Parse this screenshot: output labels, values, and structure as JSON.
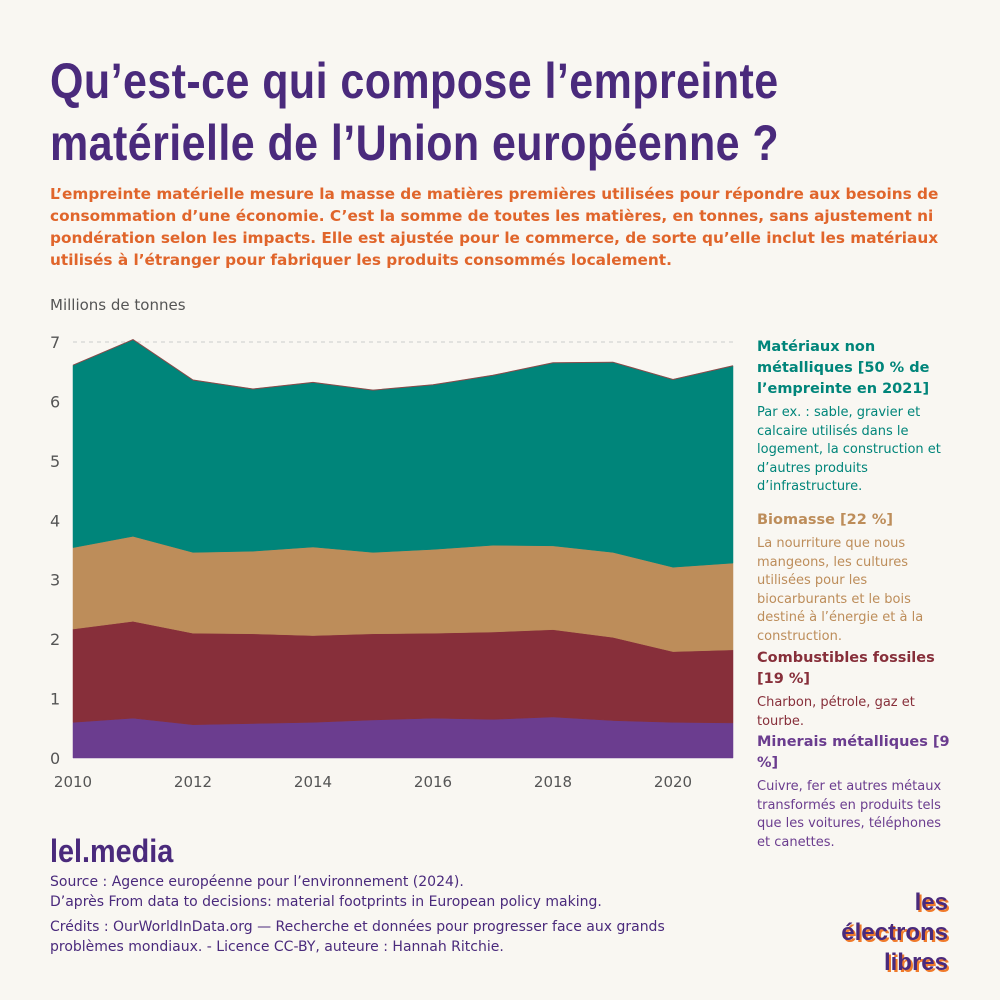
{
  "title": "Qu’est-ce qui compose l’empreinte matérielle de l’Union européenne ?",
  "intro": "L’empreinte matérielle mesure la masse de matières premières utilisées pour répondre aux besoins de consommation d’une économie. C’est la somme de toutes les matières, en tonnes, sans ajustement ni pondération selon les impacts. Elle est ajustée pour le commerce, de sorte qu’elle inclut les matériaux utilisés à l’étranger pour fabriquer les produits consommés localement.",
  "chart_data": {
    "type": "area",
    "stacked": true,
    "ylabel": "Millions de tonnes",
    "ylim": [
      0,
      7
    ],
    "yticks": [
      "0",
      "1",
      "2",
      "3",
      "4",
      "5",
      "6",
      "7"
    ],
    "xticks": [
      "2010",
      "2012",
      "2014",
      "2016",
      "2018",
      "2020"
    ],
    "x": [
      2010,
      2011,
      2012,
      2013,
      2014,
      2015,
      2016,
      2017,
      2018,
      2019,
      2020,
      2021
    ],
    "series": [
      {
        "name": "Minerais métalliques",
        "color": "#6b3d8f",
        "values": [
          0.6,
          0.67,
          0.56,
          0.58,
          0.6,
          0.64,
          0.67,
          0.65,
          0.69,
          0.63,
          0.6,
          0.59
        ]
      },
      {
        "name": "Combustibles fossiles",
        "color": "#872f3a",
        "values": [
          1.57,
          1.63,
          1.54,
          1.51,
          1.46,
          1.45,
          1.43,
          1.47,
          1.47,
          1.4,
          1.19,
          1.23
        ]
      },
      {
        "name": "Biomasse",
        "color": "#bd8d5a",
        "values": [
          1.37,
          1.43,
          1.36,
          1.39,
          1.49,
          1.37,
          1.41,
          1.46,
          1.41,
          1.43,
          1.42,
          1.46
        ]
      },
      {
        "name": "Matériaux non métalliques",
        "color": "#00857a",
        "values": [
          3.07,
          3.31,
          2.9,
          2.73,
          2.77,
          2.73,
          2.77,
          2.86,
          3.08,
          3.2,
          3.16,
          3.32
        ]
      }
    ]
  },
  "legend": [
    {
      "title": "Matériaux non métalliques [50 % de l’empreinte en 2021]",
      "desc": "Par ex. : sable, gravier et calcaire utilisés dans le logement, la construction et d’autres produits d’infrastructure.",
      "color": "#00857a"
    },
    {
      "title": "Biomasse [22 %]",
      "desc": "La nourriture que nous mangeons, les cultures utilisées pour les biocarburants et le bois destiné à l’énergie et à la construction.",
      "color": "#bd8d5a"
    },
    {
      "title": "Combustibles fossiles [19 %]",
      "desc": "Charbon, pétrole, gaz et tourbe.",
      "color": "#872f3a"
    },
    {
      "title": "Minerais métalliques [9 %]",
      "desc": "Cuivre, fer et autres métaux transformés en produits tels que les voitures, téléphones et canettes.",
      "color": "#6b3d8f"
    }
  ],
  "brand": "lel.media",
  "source": [
    "Source : Agence européenne pour l’environnement (2024).",
    "D’après From data to decisions: material footprints in European policy making."
  ],
  "credits": "Crédits : OurWorldInData.org — Recherche et données pour progresser face aux grands problèmes mondiaux. - Licence CC-BY, auteure : Hannah Ritchie.",
  "logo": {
    "line1": "les électrons",
    "line2": "libres"
  }
}
